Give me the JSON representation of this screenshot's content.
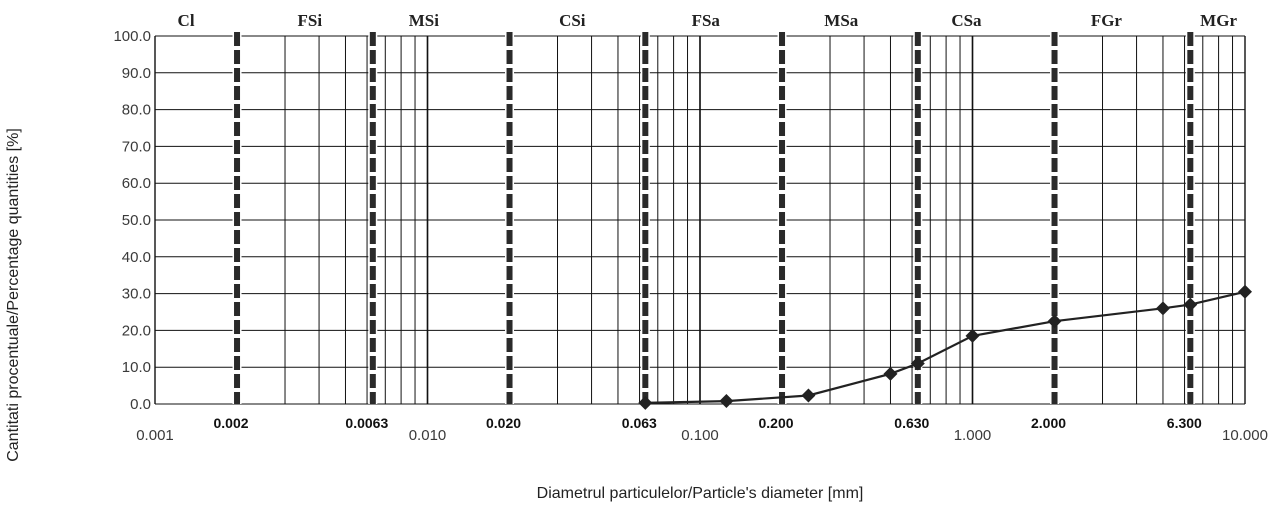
{
  "chart_data": {
    "type": "line",
    "x_scale": "log",
    "xlim": [
      0.001,
      10.0
    ],
    "ylim": [
      0,
      100
    ],
    "grid": true,
    "xlabel": "Diametrul particulelor/Particle's diameter [mm]",
    "ylabel": "Cantitati procentuale/Percentage quantities [%]",
    "y_ticks": [
      "0.0",
      "10.0",
      "20.0",
      "30.0",
      "40.0",
      "50.0",
      "60.0",
      "70.0",
      "80.0",
      "90.0",
      "100.0"
    ],
    "x_ticks": [
      {
        "value": 0.001,
        "label": "0.001"
      },
      {
        "value": 0.01,
        "label": "0.010"
      },
      {
        "value": 0.1,
        "label": "0.100"
      },
      {
        "value": 1.0,
        "label": "1.000"
      },
      {
        "value": 10.0,
        "label": "10.000"
      }
    ],
    "boundaries": [
      {
        "value": 0.002,
        "label": "0.002"
      },
      {
        "value": 0.0063,
        "label": "0.0063"
      },
      {
        "value": 0.02,
        "label": "0.020"
      },
      {
        "value": 0.063,
        "label": "0.063"
      },
      {
        "value": 0.2,
        "label": "0.200"
      },
      {
        "value": 0.63,
        "label": "0.630"
      },
      {
        "value": 2.0,
        "label": "2.000"
      },
      {
        "value": 6.3,
        "label": "6.300"
      }
    ],
    "fractions": [
      {
        "label": "Cl",
        "x": 0.0013
      },
      {
        "label": "FSi",
        "x": 0.0037
      },
      {
        "label": "MSi",
        "x": 0.0097
      },
      {
        "label": "CSi",
        "x": 0.034
      },
      {
        "label": "FSa",
        "x": 0.105
      },
      {
        "label": "MSa",
        "x": 0.33
      },
      {
        "label": "CSa",
        "x": 0.95
      },
      {
        "label": "FGr",
        "x": 3.1
      },
      {
        "label": "MGr",
        "x": 8.0
      }
    ],
    "series": [
      {
        "x": [
          0.063,
          0.125,
          0.25,
          0.5,
          0.63,
          1.0,
          2.0,
          5.0,
          6.3,
          10.0
        ],
        "y": [
          0.3,
          0.8,
          2.3,
          8.2,
          11.0,
          18.5,
          22.5,
          26.0,
          27.0,
          30.5
        ]
      }
    ]
  }
}
